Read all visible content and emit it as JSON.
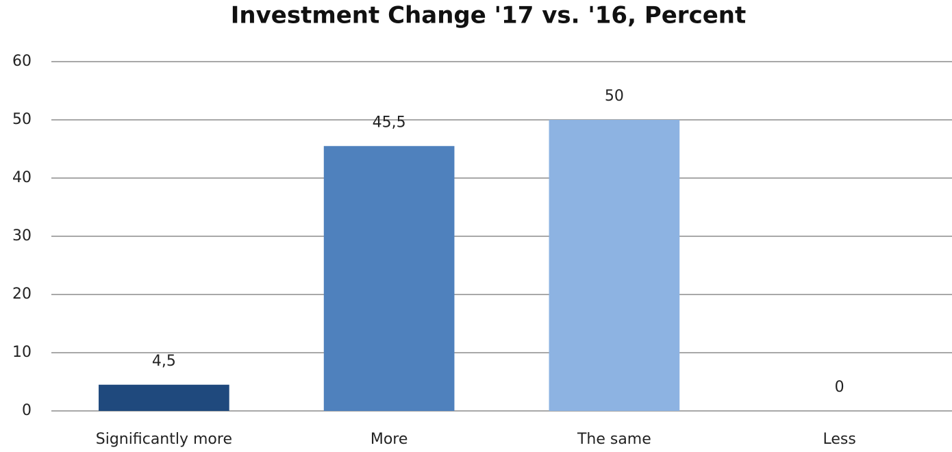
{
  "chart_data": {
    "type": "bar",
    "title": "Investment Change '17 vs. '16, Percent",
    "categories": [
      "Significantly more",
      "More",
      "The same",
      "Less"
    ],
    "values": [
      4.5,
      45.5,
      50,
      0
    ],
    "value_labels": [
      "4,5",
      "45,5",
      "50",
      "0"
    ],
    "colors": [
      "#1f497d",
      "#4f81bd",
      "#8db3e2",
      "#c6d9f1"
    ],
    "ylim": [
      0,
      60
    ],
    "yticks": [
      0,
      10,
      20,
      30,
      40,
      50,
      60
    ],
    "grid": true
  }
}
